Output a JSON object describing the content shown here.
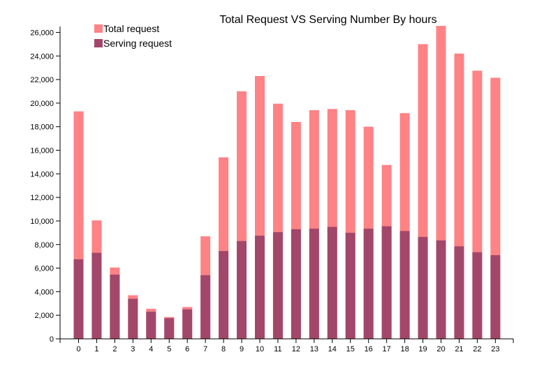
{
  "chart_data": {
    "type": "bar",
    "stacked": "overlay",
    "title": "Total Request VS Serving Number By hours",
    "xlabel": "",
    "ylabel": "",
    "categories": [
      "0",
      "1",
      "2",
      "3",
      "4",
      "5",
      "6",
      "7",
      "8",
      "9",
      "10",
      "11",
      "12",
      "13",
      "14",
      "15",
      "16",
      "17",
      "18",
      "19",
      "20",
      "21",
      "22",
      "23"
    ],
    "series": [
      {
        "name": "Total request",
        "color": "#ff8285",
        "values": [
          19300,
          10050,
          6050,
          3700,
          2550,
          1850,
          2700,
          8700,
          15400,
          21000,
          22300,
          19950,
          18400,
          19400,
          19500,
          19400,
          18000,
          14750,
          19150,
          25000,
          26550,
          24200,
          22750,
          22150
        ]
      },
      {
        "name": "Serving request",
        "color": "#a3476a",
        "values": [
          6750,
          7300,
          5450,
          3400,
          2300,
          1750,
          2500,
          5400,
          7450,
          8300,
          8750,
          9050,
          9300,
          9350,
          9500,
          9000,
          9350,
          9550,
          9150,
          8650,
          8350,
          7850,
          7350,
          7100
        ]
      }
    ],
    "ylim": [
      0,
      26500
    ],
    "yticks": [
      0,
      2000,
      4000,
      6000,
      8000,
      10000,
      12000,
      14000,
      16000,
      18000,
      20000,
      22000,
      24000,
      26000
    ],
    "ytick_labels": [
      "0",
      "2,000",
      "4,000",
      "6,000",
      "8,000",
      "10,000",
      "12,000",
      "14,000",
      "16,000",
      "18,000",
      "20,000",
      "22,000",
      "24,000",
      "26,000"
    ],
    "grid": false,
    "legend_position": "top-left"
  }
}
